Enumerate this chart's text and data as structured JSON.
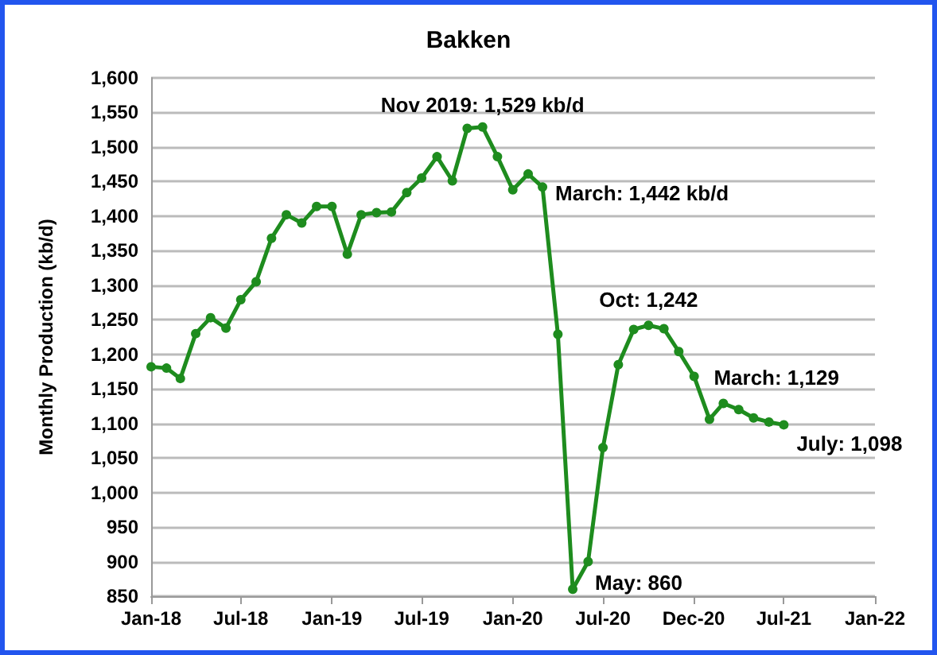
{
  "chart_data": {
    "type": "line",
    "title": "Bakken",
    "ylabel": "Monthly Production (kb/d)",
    "x": [
      "2018-01",
      "2018-02",
      "2018-03",
      "2018-04",
      "2018-05",
      "2018-06",
      "2018-07",
      "2018-08",
      "2018-09",
      "2018-10",
      "2018-11",
      "2018-12",
      "2019-01",
      "2019-02",
      "2019-03",
      "2019-04",
      "2019-05",
      "2019-06",
      "2019-07",
      "2019-08",
      "2019-09",
      "2019-10",
      "2019-11",
      "2019-12",
      "2020-01",
      "2020-02",
      "2020-03",
      "2020-04",
      "2020-05",
      "2020-06",
      "2020-07",
      "2020-08",
      "2020-09",
      "2020-10",
      "2020-11",
      "2020-12",
      "2021-01",
      "2021-02",
      "2021-03",
      "2021-04",
      "2021-05",
      "2021-06",
      "2021-07"
    ],
    "series": [
      {
        "color": "#1e8c1e",
        "values": [
          1182,
          1180,
          1165,
          1230,
          1253,
          1238,
          1279,
          1305,
          1368,
          1402,
          1390,
          1414,
          1414,
          1345,
          1402,
          1405,
          1406,
          1434,
          1455,
          1486,
          1451,
          1527,
          1529,
          1486,
          1438,
          1461,
          1442,
          1229,
          860,
          900,
          1065,
          1185,
          1236,
          1242,
          1237,
          1204,
          1168,
          1106,
          1129,
          1120,
          1108,
          1102,
          1098
        ]
      }
    ],
    "xlim": [
      "2018-01-01",
      "2022-01-01"
    ],
    "xticks": [
      {
        "value": "2018-01-01",
        "label": "Jan-18"
      },
      {
        "value": "2018-07-01",
        "label": "Jul-18"
      },
      {
        "value": "2019-01-01",
        "label": "Jan-19"
      },
      {
        "value": "2019-07-01",
        "label": "Jul-19"
      },
      {
        "value": "2020-01-01",
        "label": "Jan-20"
      },
      {
        "value": "2020-07-01",
        "label": "Jul-20"
      },
      {
        "value": "2020-12-31",
        "label": "Dec-20"
      },
      {
        "value": "2021-07-01",
        "label": "Jul-21"
      },
      {
        "value": "2022-01-01",
        "label": "Jan-22"
      }
    ],
    "ylim": [
      850,
      1600
    ],
    "yticks": [
      {
        "value": 850,
        "label": "850"
      },
      {
        "value": 900,
        "label": "900"
      },
      {
        "value": 950,
        "label": "950"
      },
      {
        "value": 1000,
        "label": "1,000"
      },
      {
        "value": 1050,
        "label": "1,050"
      },
      {
        "value": 1100,
        "label": "1,100"
      },
      {
        "value": 1150,
        "label": "1,150"
      },
      {
        "value": 1200,
        "label": "1,200"
      },
      {
        "value": 1250,
        "label": "1,250"
      },
      {
        "value": 1300,
        "label": "1,300"
      },
      {
        "value": 1350,
        "label": "1,350"
      },
      {
        "value": 1400,
        "label": "1,400"
      },
      {
        "value": 1450,
        "label": "1,450"
      },
      {
        "value": 1500,
        "label": "1,500"
      },
      {
        "value": 1550,
        "label": "1,550"
      },
      {
        "value": 1600,
        "label": "1,600"
      }
    ],
    "annotations": [
      {
        "text": "Nov 2019: 1,529 kb/d",
        "x": "2019-11",
        "y": 1529
      },
      {
        "text": "March: 1,442 kb/d",
        "x": "2020-03",
        "y": 1442
      },
      {
        "text": "May: 860",
        "x": "2020-05",
        "y": 860
      },
      {
        "text": "Oct: 1,242",
        "x": "2020-10",
        "y": 1242
      },
      {
        "text": "March: 1,129",
        "x": "2021-03",
        "y": 1129
      },
      {
        "text": "July: 1,098",
        "x": "2021-07",
        "y": 1098
      }
    ],
    "grid": "y",
    "marker": "circle",
    "line_style": "solid"
  }
}
